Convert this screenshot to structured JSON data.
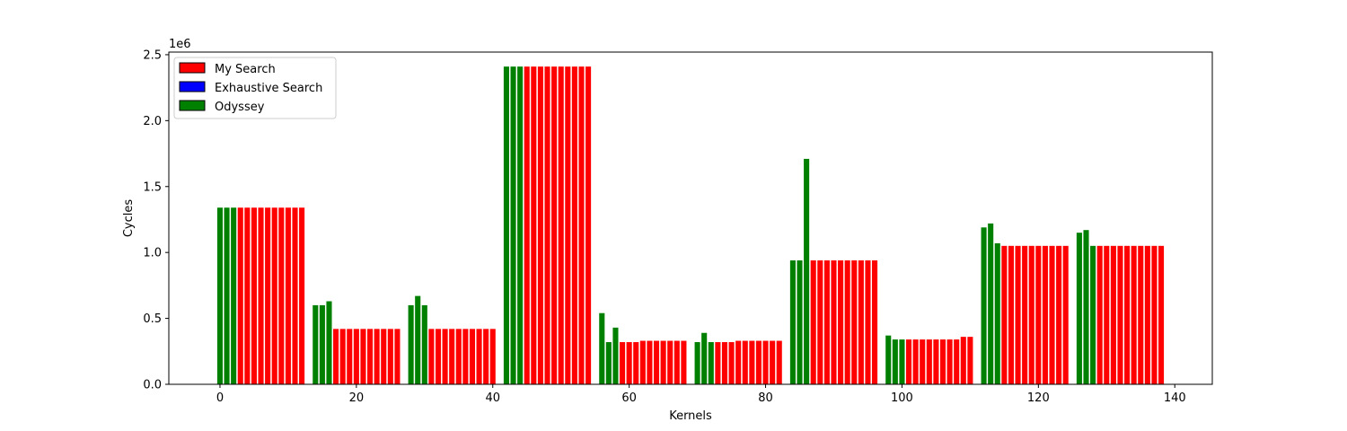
{
  "chart_data": {
    "type": "bar",
    "title": "",
    "xlabel": "Kernels",
    "ylabel": "Cycles",
    "y_offset_label": "1e6",
    "xlim": [
      -7.5,
      145.5
    ],
    "ylim": [
      0,
      2.52
    ],
    "xticks": [
      0,
      20,
      40,
      60,
      80,
      100,
      120,
      140
    ],
    "yticks": [
      0.0,
      0.5,
      1.0,
      1.5,
      2.0,
      2.5
    ],
    "xtick_labels": [
      "0",
      "20",
      "40",
      "60",
      "80",
      "100",
      "120",
      "140"
    ],
    "ytick_labels": [
      "0.0",
      "0.5",
      "1.0",
      "1.5",
      "2.0",
      "2.5"
    ],
    "grid": false,
    "legend_position": "top-left",
    "legend": [
      {
        "label": "My Search",
        "color": "#ff0000"
      },
      {
        "label": "Exhaustive Search",
        "color": "#0000ff"
      },
      {
        "label": "Odyssey",
        "color": "#008000"
      }
    ],
    "series_colors": {
      "My Search": "#ff0000",
      "Exhaustive Search": "#0000ff",
      "Odyssey": "#008000"
    },
    "bars": [
      {
        "x": 0,
        "value": 1.34,
        "series": "Odyssey"
      },
      {
        "x": 1,
        "value": 1.34,
        "series": "Odyssey"
      },
      {
        "x": 2,
        "value": 1.34,
        "series": "Odyssey"
      },
      {
        "x": 3,
        "value": 1.34,
        "series": "My Search"
      },
      {
        "x": 4,
        "value": 1.34,
        "series": "My Search"
      },
      {
        "x": 5,
        "value": 1.34,
        "series": "My Search"
      },
      {
        "x": 6,
        "value": 1.34,
        "series": "My Search"
      },
      {
        "x": 7,
        "value": 1.34,
        "series": "My Search"
      },
      {
        "x": 8,
        "value": 1.34,
        "series": "My Search"
      },
      {
        "x": 9,
        "value": 1.34,
        "series": "My Search"
      },
      {
        "x": 10,
        "value": 1.34,
        "series": "My Search"
      },
      {
        "x": 11,
        "value": 1.34,
        "series": "My Search"
      },
      {
        "x": 12,
        "value": 1.34,
        "series": "My Search"
      },
      {
        "x": 14,
        "value": 0.6,
        "series": "Odyssey"
      },
      {
        "x": 15,
        "value": 0.6,
        "series": "Odyssey"
      },
      {
        "x": 16,
        "value": 0.63,
        "series": "Odyssey"
      },
      {
        "x": 17,
        "value": 0.42,
        "series": "My Search"
      },
      {
        "x": 18,
        "value": 0.42,
        "series": "My Search"
      },
      {
        "x": 19,
        "value": 0.42,
        "series": "My Search"
      },
      {
        "x": 20,
        "value": 0.42,
        "series": "My Search"
      },
      {
        "x": 21,
        "value": 0.42,
        "series": "My Search"
      },
      {
        "x": 22,
        "value": 0.42,
        "series": "My Search"
      },
      {
        "x": 23,
        "value": 0.42,
        "series": "My Search"
      },
      {
        "x": 24,
        "value": 0.42,
        "series": "My Search"
      },
      {
        "x": 25,
        "value": 0.42,
        "series": "My Search"
      },
      {
        "x": 26,
        "value": 0.42,
        "series": "My Search"
      },
      {
        "x": 28,
        "value": 0.6,
        "series": "Odyssey"
      },
      {
        "x": 29,
        "value": 0.67,
        "series": "Odyssey"
      },
      {
        "x": 30,
        "value": 0.6,
        "series": "Odyssey"
      },
      {
        "x": 31,
        "value": 0.42,
        "series": "My Search"
      },
      {
        "x": 32,
        "value": 0.42,
        "series": "My Search"
      },
      {
        "x": 33,
        "value": 0.42,
        "series": "My Search"
      },
      {
        "x": 34,
        "value": 0.42,
        "series": "My Search"
      },
      {
        "x": 35,
        "value": 0.42,
        "series": "My Search"
      },
      {
        "x": 36,
        "value": 0.42,
        "series": "My Search"
      },
      {
        "x": 37,
        "value": 0.42,
        "series": "My Search"
      },
      {
        "x": 38,
        "value": 0.42,
        "series": "My Search"
      },
      {
        "x": 39,
        "value": 0.42,
        "series": "My Search"
      },
      {
        "x": 40,
        "value": 0.42,
        "series": "My Search"
      },
      {
        "x": 42,
        "value": 2.41,
        "series": "Odyssey"
      },
      {
        "x": 43,
        "value": 2.41,
        "series": "Odyssey"
      },
      {
        "x": 44,
        "value": 2.41,
        "series": "Odyssey"
      },
      {
        "x": 45,
        "value": 2.41,
        "series": "My Search"
      },
      {
        "x": 46,
        "value": 2.41,
        "series": "My Search"
      },
      {
        "x": 47,
        "value": 2.41,
        "series": "My Search"
      },
      {
        "x": 48,
        "value": 2.41,
        "series": "My Search"
      },
      {
        "x": 49,
        "value": 2.41,
        "series": "My Search"
      },
      {
        "x": 50,
        "value": 2.41,
        "series": "My Search"
      },
      {
        "x": 51,
        "value": 2.41,
        "series": "My Search"
      },
      {
        "x": 52,
        "value": 2.41,
        "series": "My Search"
      },
      {
        "x": 53,
        "value": 2.41,
        "series": "My Search"
      },
      {
        "x": 54,
        "value": 2.41,
        "series": "My Search"
      },
      {
        "x": 56,
        "value": 0.54,
        "series": "Odyssey"
      },
      {
        "x": 57,
        "value": 0.32,
        "series": "Odyssey"
      },
      {
        "x": 58,
        "value": 0.43,
        "series": "Odyssey"
      },
      {
        "x": 59,
        "value": 0.32,
        "series": "My Search"
      },
      {
        "x": 60,
        "value": 0.32,
        "series": "My Search"
      },
      {
        "x": 61,
        "value": 0.32,
        "series": "My Search"
      },
      {
        "x": 62,
        "value": 0.33,
        "series": "My Search"
      },
      {
        "x": 63,
        "value": 0.33,
        "series": "My Search"
      },
      {
        "x": 64,
        "value": 0.33,
        "series": "My Search"
      },
      {
        "x": 65,
        "value": 0.33,
        "series": "My Search"
      },
      {
        "x": 66,
        "value": 0.33,
        "series": "My Search"
      },
      {
        "x": 67,
        "value": 0.33,
        "series": "My Search"
      },
      {
        "x": 68,
        "value": 0.33,
        "series": "My Search"
      },
      {
        "x": 70,
        "value": 0.32,
        "series": "Odyssey"
      },
      {
        "x": 71,
        "value": 0.39,
        "series": "Odyssey"
      },
      {
        "x": 72,
        "value": 0.32,
        "series": "Odyssey"
      },
      {
        "x": 73,
        "value": 0.32,
        "series": "My Search"
      },
      {
        "x": 74,
        "value": 0.32,
        "series": "My Search"
      },
      {
        "x": 75,
        "value": 0.32,
        "series": "My Search"
      },
      {
        "x": 76,
        "value": 0.33,
        "series": "My Search"
      },
      {
        "x": 77,
        "value": 0.33,
        "series": "My Search"
      },
      {
        "x": 78,
        "value": 0.33,
        "series": "My Search"
      },
      {
        "x": 79,
        "value": 0.33,
        "series": "My Search"
      },
      {
        "x": 80,
        "value": 0.33,
        "series": "My Search"
      },
      {
        "x": 81,
        "value": 0.33,
        "series": "My Search"
      },
      {
        "x": 82,
        "value": 0.33,
        "series": "My Search"
      },
      {
        "x": 84,
        "value": 0.94,
        "series": "Odyssey"
      },
      {
        "x": 85,
        "value": 0.94,
        "series": "Odyssey"
      },
      {
        "x": 86,
        "value": 1.71,
        "series": "Odyssey"
      },
      {
        "x": 87,
        "value": 0.94,
        "series": "My Search"
      },
      {
        "x": 88,
        "value": 0.94,
        "series": "My Search"
      },
      {
        "x": 89,
        "value": 0.94,
        "series": "My Search"
      },
      {
        "x": 90,
        "value": 0.94,
        "series": "My Search"
      },
      {
        "x": 91,
        "value": 0.94,
        "series": "My Search"
      },
      {
        "x": 92,
        "value": 0.94,
        "series": "My Search"
      },
      {
        "x": 93,
        "value": 0.94,
        "series": "My Search"
      },
      {
        "x": 94,
        "value": 0.94,
        "series": "My Search"
      },
      {
        "x": 95,
        "value": 0.94,
        "series": "My Search"
      },
      {
        "x": 96,
        "value": 0.94,
        "series": "My Search"
      },
      {
        "x": 98,
        "value": 0.37,
        "series": "Odyssey"
      },
      {
        "x": 99,
        "value": 0.34,
        "series": "Odyssey"
      },
      {
        "x": 100,
        "value": 0.34,
        "series": "Odyssey"
      },
      {
        "x": 101,
        "value": 0.34,
        "series": "My Search"
      },
      {
        "x": 102,
        "value": 0.34,
        "series": "My Search"
      },
      {
        "x": 103,
        "value": 0.34,
        "series": "My Search"
      },
      {
        "x": 104,
        "value": 0.34,
        "series": "My Search"
      },
      {
        "x": 105,
        "value": 0.34,
        "series": "My Search"
      },
      {
        "x": 106,
        "value": 0.34,
        "series": "My Search"
      },
      {
        "x": 107,
        "value": 0.34,
        "series": "My Search"
      },
      {
        "x": 108,
        "value": 0.34,
        "series": "My Search"
      },
      {
        "x": 109,
        "value": 0.36,
        "series": "My Search"
      },
      {
        "x": 110,
        "value": 0.36,
        "series": "My Search"
      },
      {
        "x": 112,
        "value": 1.19,
        "series": "Odyssey"
      },
      {
        "x": 113,
        "value": 1.22,
        "series": "Odyssey"
      },
      {
        "x": 114,
        "value": 1.07,
        "series": "Odyssey"
      },
      {
        "x": 115,
        "value": 1.05,
        "series": "My Search"
      },
      {
        "x": 116,
        "value": 1.05,
        "series": "My Search"
      },
      {
        "x": 117,
        "value": 1.05,
        "series": "My Search"
      },
      {
        "x": 118,
        "value": 1.05,
        "series": "My Search"
      },
      {
        "x": 119,
        "value": 1.05,
        "series": "My Search"
      },
      {
        "x": 120,
        "value": 1.05,
        "series": "My Search"
      },
      {
        "x": 121,
        "value": 1.05,
        "series": "My Search"
      },
      {
        "x": 122,
        "value": 1.05,
        "series": "My Search"
      },
      {
        "x": 123,
        "value": 1.05,
        "series": "My Search"
      },
      {
        "x": 124,
        "value": 1.05,
        "series": "My Search"
      },
      {
        "x": 126,
        "value": 1.15,
        "series": "Odyssey"
      },
      {
        "x": 127,
        "value": 1.17,
        "series": "Odyssey"
      },
      {
        "x": 128,
        "value": 1.05,
        "series": "Odyssey"
      },
      {
        "x": 129,
        "value": 1.05,
        "series": "My Search"
      },
      {
        "x": 130,
        "value": 1.05,
        "series": "My Search"
      },
      {
        "x": 131,
        "value": 1.05,
        "series": "My Search"
      },
      {
        "x": 132,
        "value": 1.05,
        "series": "My Search"
      },
      {
        "x": 133,
        "value": 1.05,
        "series": "My Search"
      },
      {
        "x": 134,
        "value": 1.05,
        "series": "My Search"
      },
      {
        "x": 135,
        "value": 1.05,
        "series": "My Search"
      },
      {
        "x": 136,
        "value": 1.05,
        "series": "My Search"
      },
      {
        "x": 137,
        "value": 1.05,
        "series": "My Search"
      },
      {
        "x": 138,
        "value": 1.05,
        "series": "My Search"
      }
    ]
  }
}
